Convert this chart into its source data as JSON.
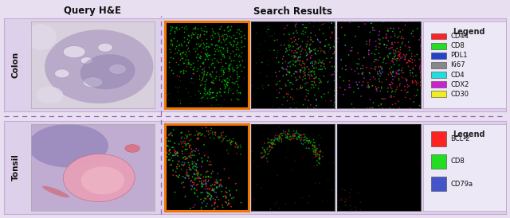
{
  "title_query": "Query H&E",
  "title_search": "Search Results",
  "row_labels": [
    "Colon",
    "Tonsil"
  ],
  "colon_legend": {
    "title": "Legend",
    "items": [
      {
        "label": "CD44",
        "color": "#ff2222"
      },
      {
        "label": "CD8",
        "color": "#22dd22"
      },
      {
        "label": "PDL1",
        "color": "#2244cc"
      },
      {
        "label": "Ki67",
        "color": "#888888"
      },
      {
        "label": "CD4",
        "color": "#22dddd"
      },
      {
        "label": "CDX2",
        "color": "#cc22cc"
      },
      {
        "label": "CD30",
        "color": "#eeee22"
      }
    ]
  },
  "tonsil_legend": {
    "title": "Legend",
    "items": [
      {
        "label": "BCL-2",
        "color": "#ff2222"
      },
      {
        "label": "CD8",
        "color": "#22dd22"
      },
      {
        "label": "CD79a",
        "color": "#4455cc"
      }
    ]
  },
  "outer_bg": "#e8e0f0",
  "row_bg": "#ddd0ea",
  "row_border": "#c8aad8",
  "legend_bg": "#ede8f5",
  "border_orange": "#ee7700",
  "dashed_color": "#9966bb",
  "title_color": "#111111",
  "row_label_color": "#111111",
  "header_fontsize": 8.5,
  "row_label_fontsize": 7.5,
  "legend_title_fontsize": 7,
  "legend_fontsize": 6
}
